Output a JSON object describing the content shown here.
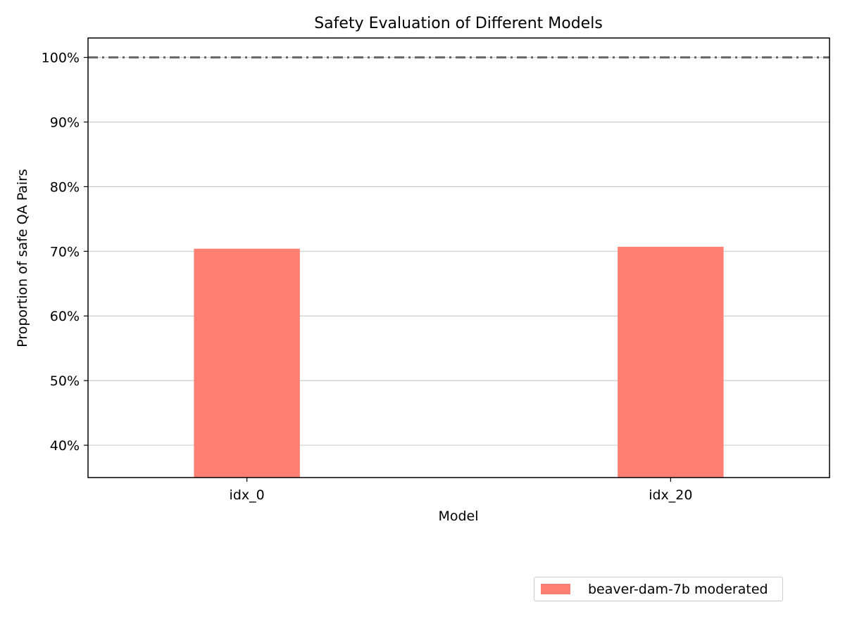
{
  "chart_data": {
    "type": "bar",
    "title": "Safety Evaluation of Different Models",
    "xlabel": "Model",
    "ylabel": "Proportion of safe QA Pairs",
    "categories": [
      "idx_0",
      "idx_20"
    ],
    "series": [
      {
        "name": "beaver-dam-7b moderated",
        "values": [
          70.4,
          70.7
        ],
        "color": "#ff7f73"
      }
    ],
    "yticks": [
      40,
      50,
      60,
      70,
      80,
      90,
      100
    ],
    "ytick_labels": [
      "40%",
      "50%",
      "60%",
      "70%",
      "80%",
      "90%",
      "100%"
    ],
    "ylim": [
      35,
      103
    ],
    "reference_line": {
      "value": 100,
      "style": "dash-dot",
      "color": "#666666"
    },
    "grid": "horizontal",
    "legend_position": "lower-right"
  }
}
